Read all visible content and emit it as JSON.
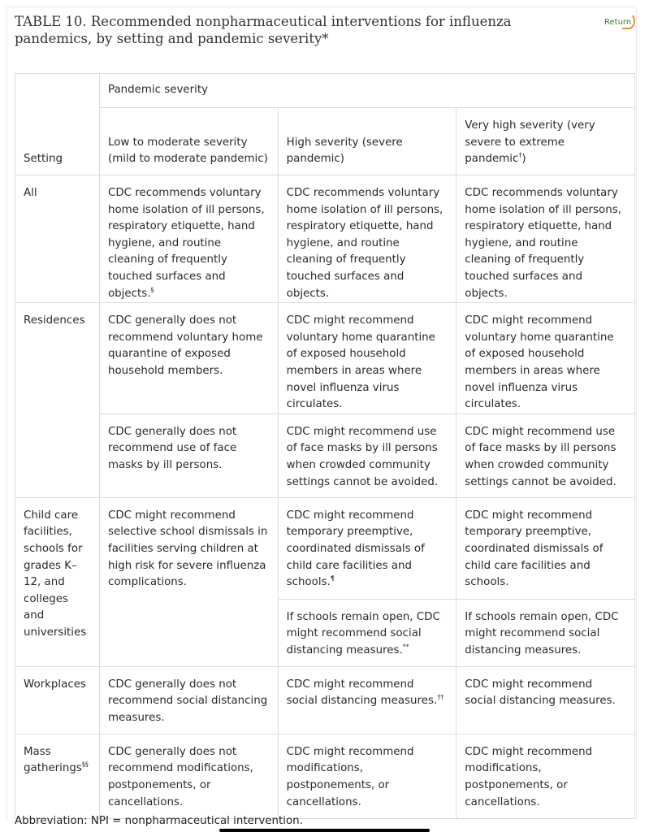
{
  "title": "TABLE 10. Recommended nonpharmaceutical interventions for influenza pandemics, by setting and pandemic severity*",
  "return_label": "Return",
  "header": {
    "setting": "Setting",
    "group": "Pandemic severity",
    "cols": [
      {
        "label": "Low to moderate severity (mild to moderate pandemic)"
      },
      {
        "label": "High severity (severe pandemic)"
      },
      {
        "label": "Very high severity (very severe to extreme pandemic",
        "sup": "†",
        "after": ")"
      }
    ]
  },
  "rows": {
    "all": {
      "setting": "All",
      "c1": "CDC recommends voluntary home isolation of ill persons, respiratory etiquette, hand hygiene, and routine cleaning of frequently touched surfaces and objects.",
      "c1_sup": "§",
      "c2": "CDC recommends voluntary home isolation of ill persons, respiratory etiquette, hand hygiene, and routine cleaning of frequently touched surfaces and objects.",
      "c3": "CDC recommends voluntary home isolation of ill persons, respiratory etiquette, hand hygiene, and routine cleaning of frequently touched surfaces and objects."
    },
    "res1": {
      "setting": "Residences",
      "c1": "CDC generally does not recommend voluntary home quarantine of exposed household members.",
      "c2": "CDC might recommend voluntary home quarantine of exposed household members in areas where novel influenza virus circulates.",
      "c3": "CDC might recommend voluntary home quarantine of exposed household members in areas where novel influenza virus circulates."
    },
    "res2": {
      "c1": "CDC generally does not recommend use of face masks by ill persons.",
      "c2": "CDC might recommend use of face masks by ill persons when crowded community settings cannot be avoided.",
      "c3": "CDC might recommend use of face masks by ill persons when crowded community settings cannot be avoided."
    },
    "child1": {
      "setting": "Child care facilities, schools for grades K–12, and colleges and universities",
      "c1": "CDC might recommend selective school dismissals in facilities serving children at high risk for severe influenza complications.",
      "c2": "CDC might recommend temporary preemptive, coordinated dismissals of child care facilities and schools.",
      "c2_sup": "¶",
      "c3": "CDC might recommend temporary preemptive, coordinated dismissals of child care facilities and schools."
    },
    "child2": {
      "c2": "If schools remain open, CDC might recommend social distancing measures.",
      "c2_sup": "**",
      "c3": "If schools remain open, CDC might recommend social distancing measures."
    },
    "work": {
      "setting": "Workplaces",
      "c1": "CDC generally does not recommend social distancing measures.",
      "c2": "CDC might recommend social distancing measures.",
      "c2_sup": "††",
      "c3": "CDC might recommend social distancing measures."
    },
    "mass": {
      "setting": "Mass gatherings",
      "setting_sup": "§§",
      "c1": "CDC generally does not recommend modifications, postponements, or cancellations.",
      "c2": "CDC might recommend modifications, postponements, or cancellations.",
      "c3": "CDC might recommend modifications, postponements, or cancellations."
    }
  },
  "abbreviation": {
    "label": "Abbreviation:",
    "text": " NPI = nonpharmaceutical intervention."
  }
}
